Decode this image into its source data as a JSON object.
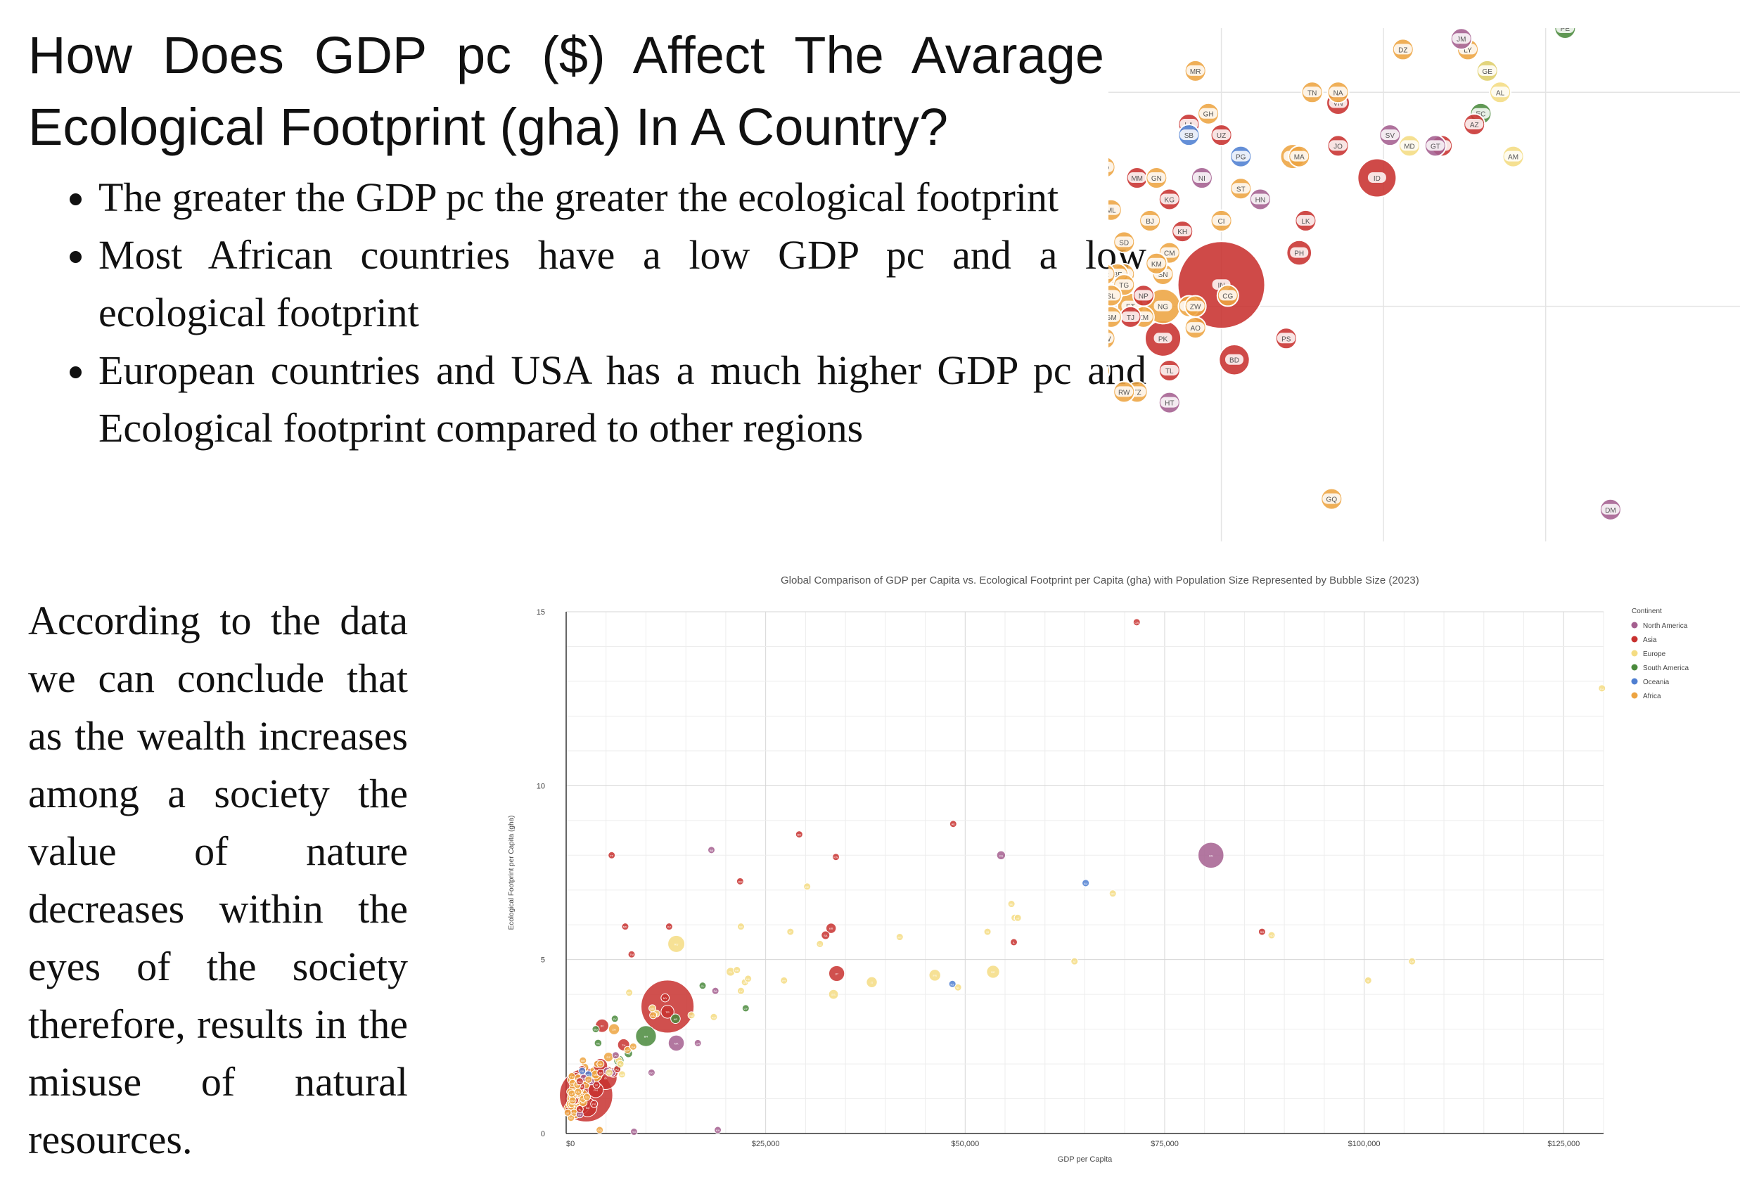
{
  "heading": "How Does GDP pc ($) Affect The Avarage Ecological Footprint (gha) In A Country?",
  "bullets": [
    "The greater the GDP pc the greater the ecological footprint",
    "Most African countries have a low GDP pc and a low ecological footprint",
    "European countries and USA has a much higher GDP pc and Ecological footprint compared to other regions"
  ],
  "conclusion": "According to the data we can conclude that as the wealth increases among a society the value of nature decreases within the eyes of the society therefore, results in the misuse of natural resources.",
  "colors": {
    "North America": "#a45f8f",
    "Asia": "#c8312f",
    "Europe": "#f4dc82",
    "South America": "#4a8a3c",
    "Oceania": "#4f7fd1",
    "Africa": "#eda441"
  },
  "chart_data": {
    "type": "scatter",
    "title": "Global Comparison of GDP per Capita vs. Ecological Footprint per Capita (gha) with Population Size Represented by Bubble Size (2023)",
    "xlabel": "GDP per Capita",
    "ylabel": "Ecological Footprint per Capita (gha)",
    "xlim": [
      0,
      130000
    ],
    "ylim": [
      0,
      15
    ],
    "x_ticks": [
      0,
      25000,
      50000,
      75000,
      100000,
      125000
    ],
    "x_tick_labels": [
      "$0",
      "$25,000",
      "$50,000",
      "$75,000",
      "$100,000",
      "$125,000"
    ],
    "y_ticks": [
      0,
      5,
      10,
      15
    ],
    "y_tick_labels": [
      "0",
      "5",
      "10",
      "15"
    ],
    "legend_title": "Continent",
    "legend": [
      "North America",
      "Asia",
      "Europe",
      "South America",
      "Oceania",
      "Africa"
    ],
    "points": [
      {
        "code": "QA",
        "x": 71500,
        "y": 14.7,
        "c": "Asia",
        "p": 3
      },
      {
        "code": "LU",
        "x": 129800,
        "y": 12.8,
        "c": "Europe",
        "p": 1
      },
      {
        "code": "AE",
        "x": 48500,
        "y": 8.9,
        "c": "Asia",
        "p": 9
      },
      {
        "code": "US",
        "x": 80800,
        "y": 8.0,
        "c": "North America",
        "p": 335
      },
      {
        "code": "CA",
        "x": 54500,
        "y": 8.0,
        "c": "North America",
        "p": 39
      },
      {
        "code": "TT",
        "x": 5700,
        "y": 8.0,
        "c": "Asia",
        "p": 2
      },
      {
        "code": "BH",
        "x": 29200,
        "y": 8.6,
        "c": "Asia",
        "p": 2
      },
      {
        "code": "KW",
        "x": 33800,
        "y": 7.95,
        "c": "Asia",
        "p": 4
      },
      {
        "code": "BB",
        "x": 18200,
        "y": 8.15,
        "c": "North America",
        "p": 1
      },
      {
        "code": "OM",
        "x": 21800,
        "y": 7.25,
        "c": "Asia",
        "p": 5
      },
      {
        "code": "AU",
        "x": 65100,
        "y": 7.2,
        "c": "Oceania",
        "p": 26
      },
      {
        "code": "DK",
        "x": 68500,
        "y": 6.9,
        "c": "Europe",
        "p": 6
      },
      {
        "code": "EE",
        "x": 30200,
        "y": 7.1,
        "c": "Europe",
        "p": 1
      },
      {
        "code": "SG",
        "x": 87200,
        "y": 5.8,
        "c": "Asia",
        "p": 6
      },
      {
        "code": "NO",
        "x": 88400,
        "y": 5.7,
        "c": "Europe",
        "p": 5
      },
      {
        "code": "SA",
        "x": 32500,
        "y": 5.7,
        "c": "Asia",
        "p": 36
      },
      {
        "code": "KR",
        "x": 33200,
        "y": 5.9,
        "c": "Asia",
        "p": 52
      },
      {
        "code": "BE",
        "x": 55800,
        "y": 6.6,
        "c": "Europe",
        "p": 12
      },
      {
        "code": "SE",
        "x": 56200,
        "y": 6.2,
        "c": "Europe",
        "p": 10
      },
      {
        "code": "FI",
        "x": 56600,
        "y": 6.2,
        "c": "Europe",
        "p": 6
      },
      {
        "code": "MT",
        "x": 41800,
        "y": 5.65,
        "c": "Europe",
        "p": 1
      },
      {
        "code": "SI",
        "x": 52800,
        "y": 5.8,
        "c": "Europe",
        "p": 2
      },
      {
        "code": "IL",
        "x": 56100,
        "y": 5.5,
        "c": "Asia",
        "p": 10
      },
      {
        "code": "CZ",
        "x": 31800,
        "y": 5.45,
        "c": "Europe",
        "p": 11
      },
      {
        "code": "LT",
        "x": 28100,
        "y": 5.8,
        "c": "Europe",
        "p": 3
      },
      {
        "code": "KZ",
        "x": 12900,
        "y": 5.95,
        "c": "Asia",
        "p": 20
      },
      {
        "code": "TM",
        "x": 8200,
        "y": 5.15,
        "c": "Asia",
        "p": 6
      },
      {
        "code": "MN",
        "x": 7400,
        "y": 5.95,
        "c": "Asia",
        "p": 3
      },
      {
        "code": "RU",
        "x": 13800,
        "y": 5.45,
        "c": "Europe",
        "p": 144
      },
      {
        "code": "SK",
        "x": 21900,
        "y": 5.95,
        "c": "Europe",
        "p": 5
      },
      {
        "code": "AT",
        "x": 63700,
        "y": 4.95,
        "c": "Europe",
        "p": 9
      },
      {
        "code": "IE",
        "x": 100500,
        "y": 4.4,
        "c": "Europe",
        "p": 5
      },
      {
        "code": "CH",
        "x": 106000,
        "y": 4.95,
        "c": "Europe",
        "p": 9
      },
      {
        "code": "DE",
        "x": 53500,
        "y": 4.65,
        "c": "Europe",
        "p": 84
      },
      {
        "code": "FR",
        "x": 46200,
        "y": 4.55,
        "c": "Europe",
        "p": 68
      },
      {
        "code": "NL",
        "x": 49100,
        "y": 4.2,
        "c": "Europe",
        "p": 18
      },
      {
        "code": "NZ",
        "x": 48400,
        "y": 4.3,
        "c": "Oceania",
        "p": 5
      },
      {
        "code": "JP",
        "x": 33900,
        "y": 4.6,
        "c": "Asia",
        "p": 124
      },
      {
        "code": "IT",
        "x": 38300,
        "y": 4.35,
        "c": "Europe",
        "p": 59
      },
      {
        "code": "ES",
        "x": 33500,
        "y": 4.0,
        "c": "Europe",
        "p": 48
      },
      {
        "code": "PT",
        "x": 27300,
        "y": 4.4,
        "c": "Europe",
        "p": 10
      },
      {
        "code": "GR",
        "x": 22400,
        "y": 4.35,
        "c": "Europe",
        "p": 10
      },
      {
        "code": "HR",
        "x": 21400,
        "y": 4.7,
        "c": "Europe",
        "p": 4
      },
      {
        "code": "PL",
        "x": 20600,
        "y": 4.65,
        "c": "Europe",
        "p": 38
      },
      {
        "code": "HU",
        "x": 22800,
        "y": 4.45,
        "c": "Europe",
        "p": 10
      },
      {
        "code": "LV",
        "x": 21900,
        "y": 4.1,
        "c": "Europe",
        "p": 2
      },
      {
        "code": "PA",
        "x": 18700,
        "y": 4.1,
        "c": "North America",
        "p": 4
      },
      {
        "code": "CL",
        "x": 17100,
        "y": 4.25,
        "c": "South America",
        "p": 20
      },
      {
        "code": "UY",
        "x": 22500,
        "y": 3.6,
        "c": "South America",
        "p": 3
      },
      {
        "code": "MY",
        "x": 12400,
        "y": 3.9,
        "c": "Asia",
        "p": 34
      },
      {
        "code": "CN",
        "x": 12700,
        "y": 3.65,
        "c": "Asia",
        "p": 1411
      },
      {
        "code": "BG",
        "x": 15700,
        "y": 3.4,
        "c": "Europe",
        "p": 7
      },
      {
        "code": "RO",
        "x": 18500,
        "y": 3.35,
        "c": "Europe",
        "p": 19
      },
      {
        "code": "RS",
        "x": 11300,
        "y": 3.45,
        "c": "Europe",
        "p": 7
      },
      {
        "code": "BY",
        "x": 7900,
        "y": 4.05,
        "c": "Europe",
        "p": 9
      },
      {
        "code": "ME",
        "x": 10800,
        "y": 3.6,
        "c": "Europe",
        "p": 1
      },
      {
        "code": "MU",
        "x": 10900,
        "y": 3.4,
        "c": "Africa",
        "p": 1
      },
      {
        "code": "BR",
        "x": 10000,
        "y": 2.8,
        "c": "South America",
        "p": 216
      },
      {
        "code": "AR",
        "x": 13700,
        "y": 3.3,
        "c": "South America",
        "p": 46
      },
      {
        "code": "MX",
        "x": 13800,
        "y": 2.6,
        "c": "North America",
        "p": 128
      },
      {
        "code": "TR",
        "x": 12700,
        "y": 3.5,
        "c": "Asia",
        "p": 85
      },
      {
        "code": "IR",
        "x": 4500,
        "y": 3.1,
        "c": "Asia",
        "p": 89
      },
      {
        "code": "PY",
        "x": 6100,
        "y": 3.3,
        "c": "South America",
        "p": 7
      },
      {
        "code": "BO",
        "x": 3700,
        "y": 3.0,
        "c": "South America",
        "p": 12
      },
      {
        "code": "CR",
        "x": 16500,
        "y": 2.6,
        "c": "North America",
        "p": 5
      },
      {
        "code": "DO",
        "x": 10700,
        "y": 1.75,
        "c": "North America",
        "p": 11
      },
      {
        "code": "JM",
        "x": 6200,
        "y": 2.25,
        "c": "North America",
        "p": 3
      },
      {
        "code": "TH",
        "x": 7200,
        "y": 2.55,
        "c": "Asia",
        "p": 72
      },
      {
        "code": "ZA",
        "x": 6000,
        "y": 3.0,
        "c": "Africa",
        "p": 60
      },
      {
        "code": "GA",
        "x": 8400,
        "y": 2.5,
        "c": "Africa",
        "p": 2
      },
      {
        "code": "BW",
        "x": 7700,
        "y": 2.4,
        "c": "Africa",
        "p": 3
      },
      {
        "code": "EC",
        "x": 6500,
        "y": 1.9,
        "c": "South America",
        "p": 18
      },
      {
        "code": "CO",
        "x": 6600,
        "y": 2.1,
        "c": "South America",
        "p": 52
      },
      {
        "code": "PE",
        "x": 7800,
        "y": 2.3,
        "c": "South America",
        "p": 34
      },
      {
        "code": "VE",
        "x": 4000,
        "y": 2.6,
        "c": "South America",
        "p": 28
      },
      {
        "code": "DZ",
        "x": 5300,
        "y": 2.2,
        "c": "Africa",
        "p": 45
      },
      {
        "code": "EG",
        "x": 3600,
        "y": 1.7,
        "c": "Africa",
        "p": 112
      },
      {
        "code": "MA",
        "x": 3700,
        "y": 1.7,
        "c": "Africa",
        "p": 37
      },
      {
        "code": "LY",
        "x": 6300,
        "y": 2.2,
        "c": "Africa",
        "p": 7
      },
      {
        "code": "TN",
        "x": 3900,
        "y": 2.0,
        "c": "Africa",
        "p": 12
      },
      {
        "code": "VN",
        "x": 4300,
        "y": 1.95,
        "c": "Asia",
        "p": 100
      },
      {
        "code": "ID",
        "x": 4900,
        "y": 1.6,
        "c": "Asia",
        "p": 278
      },
      {
        "code": "PH",
        "x": 3700,
        "y": 1.25,
        "c": "Asia",
        "p": 117
      },
      {
        "code": "IN",
        "x": 2500,
        "y": 1.1,
        "c": "Asia",
        "p": 1428
      },
      {
        "code": "PK",
        "x": 1600,
        "y": 0.85,
        "c": "Asia",
        "p": 240
      },
      {
        "code": "BD",
        "x": 2700,
        "y": 0.75,
        "c": "Asia",
        "p": 173
      },
      {
        "code": "NG",
        "x": 1600,
        "y": 1.0,
        "c": "Africa",
        "p": 224
      },
      {
        "code": "ET",
        "x": 1100,
        "y": 1.0,
        "c": "Africa",
        "p": 127
      },
      {
        "code": "KE",
        "x": 2000,
        "y": 1.0,
        "c": "Africa",
        "p": 55
      },
      {
        "code": "TZ",
        "x": 1200,
        "y": 0.6,
        "c": "Africa",
        "p": 67
      },
      {
        "code": "UG",
        "x": 1000,
        "y": 1.15,
        "c": "Africa",
        "p": 48
      },
      {
        "code": "CD",
        "x": 600,
        "y": 0.7,
        "c": "Africa",
        "p": 102
      },
      {
        "code": "MZ",
        "x": 600,
        "y": 0.8,
        "c": "Africa",
        "p": 34
      },
      {
        "code": "MW",
        "x": 700,
        "y": 0.85,
        "c": "Africa",
        "p": 21
      },
      {
        "code": "AF",
        "x": 400,
        "y": 0.65,
        "c": "Asia",
        "p": 42
      },
      {
        "code": "NP",
        "x": 1300,
        "y": 1.05,
        "c": "Asia",
        "p": 31
      },
      {
        "code": "MM",
        "x": 1200,
        "y": 1.6,
        "c": "Asia",
        "p": 54
      },
      {
        "code": "KH",
        "x": 1900,
        "y": 1.35,
        "c": "Asia",
        "p": 17
      },
      {
        "code": "LK",
        "x": 3800,
        "y": 1.4,
        "c": "Asia",
        "p": 22
      },
      {
        "code": "IQ",
        "x": 5900,
        "y": 1.75,
        "c": "Asia",
        "p": 45
      },
      {
        "code": "GH",
        "x": 2300,
        "y": 1.9,
        "c": "Africa",
        "p": 34
      },
      {
        "code": "CI",
        "x": 2500,
        "y": 1.4,
        "c": "Africa",
        "p": 28
      },
      {
        "code": "SD",
        "x": 1000,
        "y": 1.3,
        "c": "Africa",
        "p": 48
      },
      {
        "code": "CM",
        "x": 1700,
        "y": 1.25,
        "c": "Africa",
        "p": 28
      },
      {
        "code": "ML",
        "x": 800,
        "y": 1.45,
        "c": "Africa",
        "p": 23
      },
      {
        "code": "NE",
        "x": 600,
        "y": 1.55,
        "c": "Africa",
        "p": 27
      },
      {
        "code": "TD",
        "x": 700,
        "y": 1.65,
        "c": "Africa",
        "p": 18
      },
      {
        "code": "AO",
        "x": 2100,
        "y": 0.9,
        "c": "Africa",
        "p": 36
      },
      {
        "code": "RW",
        "x": 1000,
        "y": 0.6,
        "c": "Africa",
        "p": 14
      },
      {
        "code": "ZW",
        "x": 2100,
        "y": 1.0,
        "c": "Africa",
        "p": 16
      },
      {
        "code": "GN",
        "x": 1500,
        "y": 1.6,
        "c": "Africa",
        "p": 14
      },
      {
        "code": "BJ",
        "x": 1400,
        "y": 1.4,
        "c": "Africa",
        "p": 13
      },
      {
        "code": "BI",
        "x": 200,
        "y": 0.6,
        "c": "Africa",
        "p": 13
      },
      {
        "code": "SL",
        "x": 800,
        "y": 1.05,
        "c": "Africa",
        "p": 8
      },
      {
        "code": "CF",
        "x": 500,
        "y": 1.2,
        "c": "Africa",
        "p": 5
      },
      {
        "code": "HT",
        "x": 1700,
        "y": 0.55,
        "c": "North America",
        "p": 12
      },
      {
        "code": "HN",
        "x": 3100,
        "y": 1.5,
        "c": "North America",
        "p": 10
      },
      {
        "code": "NI",
        "x": 2200,
        "y": 1.6,
        "c": "North America",
        "p": 7
      },
      {
        "code": "SV",
        "x": 5100,
        "y": 1.8,
        "c": "North America",
        "p": 6
      },
      {
        "code": "GT",
        "x": 5800,
        "y": 1.75,
        "c": "North America",
        "p": 18
      },
      {
        "code": "UZ",
        "x": 2500,
        "y": 1.8,
        "c": "Asia",
        "p": 35
      },
      {
        "code": "KG",
        "x": 1700,
        "y": 1.5,
        "c": "Asia",
        "p": 7
      },
      {
        "code": "JO",
        "x": 4300,
        "y": 1.75,
        "c": "Asia",
        "p": 11
      },
      {
        "code": "PS",
        "x": 3500,
        "y": 0.85,
        "c": "Asia",
        "p": 5
      },
      {
        "code": "PG",
        "x": 2800,
        "y": 1.7,
        "c": "Oceania",
        "p": 10
      },
      {
        "code": "SB",
        "x": 2000,
        "y": 1.8,
        "c": "Oceania",
        "p": 1
      },
      {
        "code": "AM",
        "x": 7000,
        "y": 1.7,
        "c": "Europe",
        "p": 3
      },
      {
        "code": "AZ",
        "x": 6400,
        "y": 1.85,
        "c": "Asia",
        "p": 10
      },
      {
        "code": "GE",
        "x": 6600,
        "y": 2.1,
        "c": "Europe",
        "p": 4
      },
      {
        "code": "AL",
        "x": 6800,
        "y": 2.0,
        "c": "Europe",
        "p": 3
      },
      {
        "code": "MD",
        "x": 5400,
        "y": 1.75,
        "c": "Europe",
        "p": 3
      },
      {
        "code": "NA",
        "x": 4300,
        "y": 2.0,
        "c": "Africa",
        "p": 3
      },
      {
        "code": "MR",
        "x": 2100,
        "y": 2.1,
        "c": "Africa",
        "p": 5
      },
      {
        "code": "ST",
        "x": 2800,
        "y": 1.55,
        "c": "Africa",
        "p": 1
      },
      {
        "code": "CG",
        "x": 2600,
        "y": 1.05,
        "c": "Africa",
        "p": 6
      },
      {
        "code": "TL",
        "x": 1700,
        "y": 0.7,
        "c": "Asia",
        "p": 1
      },
      {
        "code": "GM",
        "x": 800,
        "y": 0.95,
        "c": "Africa",
        "p": 3
      },
      {
        "code": "GQ",
        "x": 4200,
        "y": 0.1,
        "c": "Africa",
        "p": 2
      },
      {
        "code": "LA",
        "x": 2000,
        "y": 1.85,
        "c": "Asia",
        "p": 8
      },
      {
        "code": "TG",
        "x": 1000,
        "y": 1.1,
        "c": "Africa",
        "p": 9
      },
      {
        "code": "LR",
        "x": 700,
        "y": 1.15,
        "c": "Africa",
        "p": 5
      },
      {
        "code": "KM",
        "x": 1500,
        "y": 1.2,
        "c": "Africa",
        "p": 1
      },
      {
        "code": "TJ",
        "x": 1100,
        "y": 0.95,
        "c": "Asia",
        "p": 10
      },
      {
        "code": "BF",
        "x": 900,
        "y": 1.15,
        "c": "Africa",
        "p": 23
      },
      {
        "code": "SN",
        "x": 1600,
        "y": 1.15,
        "c": "Africa",
        "p": 18
      },
      {
        "code": "ZM",
        "x": 1300,
        "y": 0.95,
        "c": "Africa",
        "p": 20
      },
      {
        "code": "MG",
        "x": 500,
        "y": 0.85,
        "c": "Africa",
        "p": 30
      },
      {
        "code": "SO",
        "x": 600,
        "y": 0.45,
        "c": "Africa",
        "p": 18
      },
      {
        "code": "DM",
        "x": 8500,
        "y": 0.05,
        "c": "North America",
        "p": 0.1
      },
      {
        "code": "KN",
        "x": 19000,
        "y": 0.1,
        "c": "North America",
        "p": 0.05
      }
    ]
  }
}
